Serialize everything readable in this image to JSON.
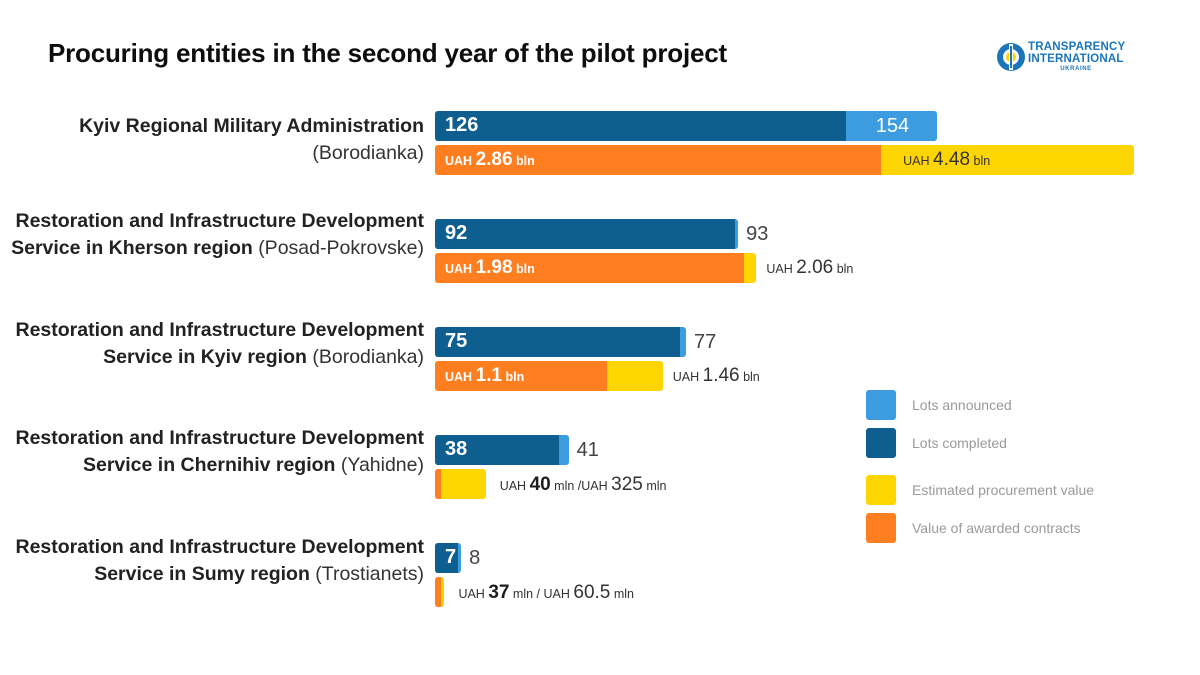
{
  "title": "Procuring entities in the second year of the pilot project",
  "logo": {
    "line1": "TRANSPARENCY",
    "line2": "INTERNATIONAL",
    "line3": "UKRAINE"
  },
  "colors": {
    "lots_announced": "#3d9be0",
    "lots_completed": "#0e5f8f",
    "estimated": "#ffd500",
    "awarded": "#ff7e20"
  },
  "legend": [
    "Lots announced",
    "Lots completed",
    "Estimated procurement value",
    "Value of awarded contracts"
  ],
  "chart_data": {
    "type": "bar",
    "orientation": "horizontal",
    "categories": [
      "Kyiv Regional Military Administration (Borodianka)",
      "Restoration and Infrastructure Development Service in Kherson region (Posad-Pokrovske)",
      "Restoration and Infrastructure Development Service in Kyiv region (Borodianka)",
      "Restoration and Infrastructure Development Service in Chernihiv region (Yahidne)",
      "Restoration and Infrastructure Development Service in Sumy region (Trostianets)"
    ],
    "series": [
      {
        "name": "Lots announced",
        "values": [
          154,
          93,
          77,
          41,
          8
        ]
      },
      {
        "name": "Lots completed",
        "values": [
          126,
          92,
          75,
          38,
          7
        ]
      },
      {
        "name": "Estimated procurement value",
        "unit": "UAH bln",
        "values": [
          4.48,
          2.06,
          1.46,
          0.325,
          0.0605
        ]
      },
      {
        "name": "Value of awarded contracts",
        "unit": "UAH bln",
        "values": [
          2.86,
          1.98,
          1.1,
          0.04,
          0.037
        ]
      }
    ],
    "scale_max_lots": 200,
    "scale_max_value_bln": 4.48
  },
  "rows": [
    {
      "label_bold": "Kyiv Regional Military Administration",
      "label_place": "(Borodianka)",
      "completed_text": "126",
      "announced_text": "154",
      "awarded_text": {
        "cur": "UAH",
        "num": "2.86",
        "unit": "bln"
      },
      "estimated_text": {
        "cur": "UAH",
        "num": "4.48",
        "unit": "bln"
      }
    },
    {
      "label_bold": "Restoration and Infrastructure Development Service in Kherson region",
      "label_place": "(Posad-Pokrovske)",
      "completed_text": "92",
      "announced_text": "93",
      "awarded_text": {
        "cur": "UAH",
        "num": "1.98",
        "unit": "bln"
      },
      "estimated_text": {
        "cur": "UAH",
        "num": "2.06",
        "unit": "bln"
      }
    },
    {
      "label_bold": "Restoration and Infrastructure Development Service in Kyiv region",
      "label_place": "(Borodianka)",
      "completed_text": "75",
      "announced_text": "77",
      "awarded_text": {
        "cur": "UAH",
        "num": "1.1",
        "unit": "bln"
      },
      "estimated_text": {
        "cur": "UAH",
        "num": "1.46",
        "unit": "bln"
      }
    },
    {
      "label_bold": "Restoration and Infrastructure Development Service in Chernihiv region",
      "label_place": "(Yahidne)",
      "completed_text": "38",
      "announced_text": "41",
      "awarded_text": {
        "cur": "UAH",
        "num": "40",
        "unit": "mln"
      },
      "separator": "/",
      "estimated_text": {
        "cur": "UAH",
        "num": "325",
        "unit": "mln"
      }
    },
    {
      "label_bold": "Restoration and Infrastructure Development Service in Sumy region",
      "label_place": "(Trostianets)",
      "completed_text": "7",
      "announced_text": "8",
      "awarded_text": {
        "cur": "UAH",
        "num": "37",
        "unit": "mln"
      },
      "separator": "/",
      "estimated_text": {
        "cur": "UAH",
        "num": "60.5",
        "unit": "mln"
      }
    }
  ]
}
